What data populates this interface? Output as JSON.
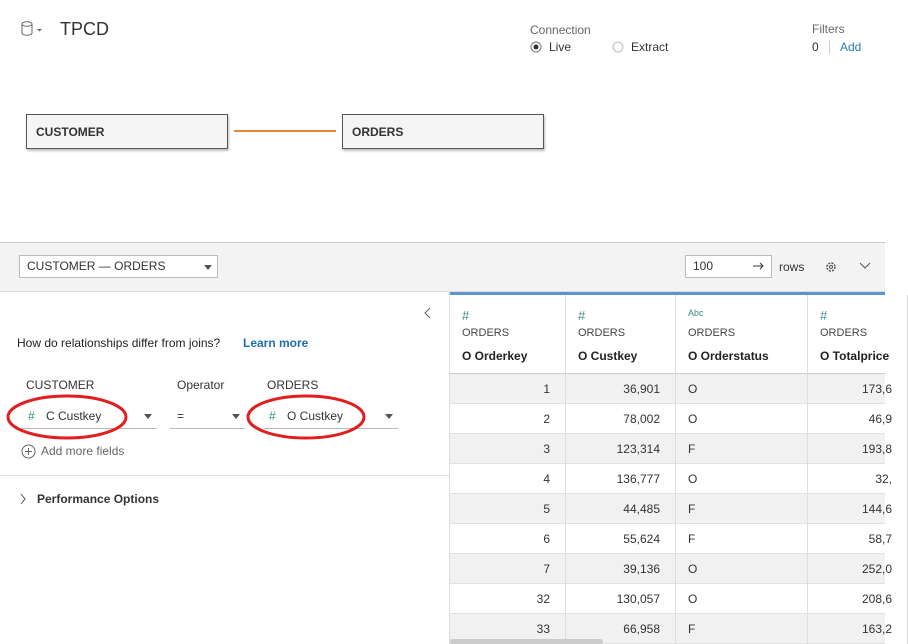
{
  "header": {
    "title": "TPCD",
    "connection_label": "Connection",
    "connection_options": [
      "Live",
      "Extract"
    ],
    "filters_label": "Filters",
    "filters_count": "0",
    "filters_add": "Add"
  },
  "canvas": {
    "tables": [
      "CUSTOMER",
      "ORDERS"
    ]
  },
  "toolbar": {
    "relationship": "CUSTOMER  —  ORDERS",
    "rows_value": "100",
    "rows_label": "rows"
  },
  "relationship_panel": {
    "question": "How do relationships differ from joins?",
    "learn_more": "Learn more",
    "left_header": "CUSTOMER",
    "operator_header": "Operator",
    "right_header": "ORDERS",
    "left_field_type": "#",
    "left_field": "C Custkey",
    "operator": "=",
    "right_field_type": "#",
    "right_field": "O Custkey",
    "add_fields": "Add more fields",
    "performance": "Performance Options"
  },
  "table": {
    "columns": [
      {
        "type": "#",
        "source": "ORDERS",
        "name": "O Orderkey"
      },
      {
        "type": "#",
        "source": "ORDERS",
        "name": "O Custkey"
      },
      {
        "type": "Abc",
        "source": "ORDERS",
        "name": "O Orderstatus"
      },
      {
        "type": "#",
        "source": "ORDERS",
        "name": "O Totalprice"
      }
    ],
    "rows": [
      [
        "1",
        "36,901",
        "O",
        "173,6"
      ],
      [
        "2",
        "78,002",
        "O",
        "46,9"
      ],
      [
        "3",
        "123,314",
        "F",
        "193,8"
      ],
      [
        "4",
        "136,777",
        "O",
        "32,"
      ],
      [
        "5",
        "44,485",
        "F",
        "144,6"
      ],
      [
        "6",
        "55,624",
        "F",
        "58,7"
      ],
      [
        "7",
        "39,136",
        "O",
        "252,0"
      ],
      [
        "32",
        "130,057",
        "O",
        "208,6"
      ],
      [
        "33",
        "66,958",
        "F",
        "163,2"
      ]
    ]
  }
}
